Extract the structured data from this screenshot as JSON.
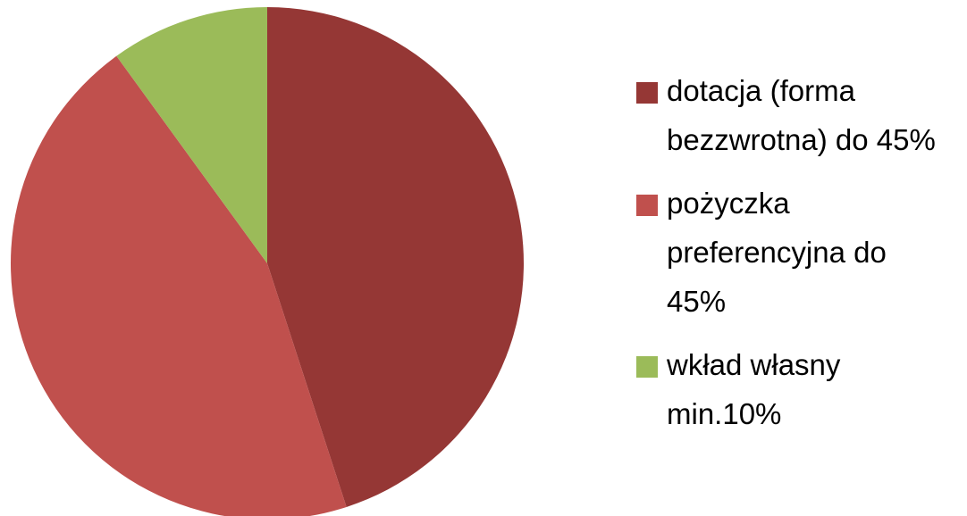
{
  "chart_data": {
    "type": "pie",
    "categories": [
      "dotacja (forma bezzwrotna) do 45%",
      "pożyczka preferencyjna do 45%",
      "wkład własny min.10%"
    ],
    "values": [
      45,
      45,
      10
    ],
    "colors": [
      "#953735",
      "#c0504d",
      "#9bbb59"
    ],
    "legend": "right"
  }
}
